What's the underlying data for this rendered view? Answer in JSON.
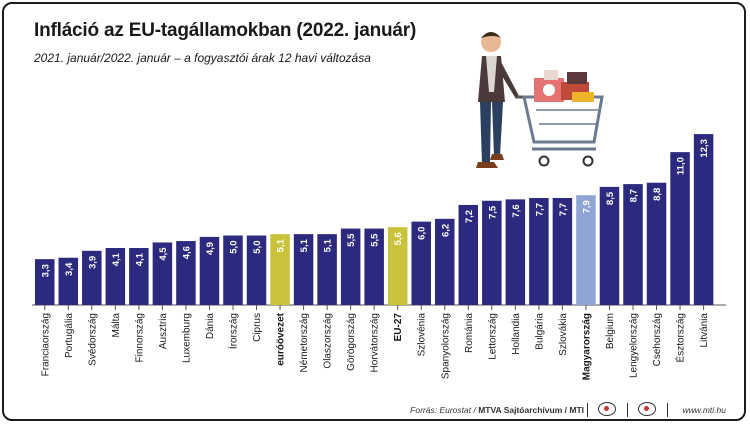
{
  "title": "Infláció az EU-tagállamokban (2022. január)",
  "subtitle": "2021. január/2022. január – a fogyasztói árak 12 havi változása",
  "footer": {
    "source_prefix": "Forrás: Eurostat / ",
    "source_bold": "MTVA Sajtóarchívum / MTI",
    "site": "www.mti.hu"
  },
  "colors": {
    "bar_default": "#2b2a7e",
    "bar_eu": "#c8c33a",
    "bar_hungary": "#8ea5d6",
    "axis": "#555555"
  },
  "icons": [
    "shopper-with-cart-illustration",
    "mtva-logo-icon",
    "mti-logo-icon"
  ],
  "chart_data": {
    "type": "bar",
    "categories": [
      "Franciaország",
      "Portugália",
      "Svédország",
      "Málta",
      "Finnország",
      "Ausztria",
      "Luxemburg",
      "Dánia",
      "Írország",
      "Ciprus",
      "euróövezet",
      "Németország",
      "Olaszország",
      "Görögország",
      "Horvátország",
      "EU-27",
      "Szlovénia",
      "Spanyolország",
      "Románia",
      "Lettország",
      "Hollandia",
      "Bulgária",
      "Szlovákia",
      "Magyarország",
      "Belgium",
      "Lengyelország",
      "Csehország",
      "Észtország",
      "Litvánia"
    ],
    "values": [
      3.3,
      3.4,
      3.9,
      4.1,
      4.1,
      4.5,
      4.6,
      4.9,
      5.0,
      5.0,
      5.1,
      5.1,
      5.1,
      5.5,
      5.5,
      5.6,
      6.0,
      6.2,
      7.2,
      7.5,
      7.6,
      7.7,
      7.7,
      7.9,
      8.5,
      8.7,
      8.8,
      11.0,
      12.3
    ],
    "value_labels": [
      "3,3",
      "3,4",
      "3,9",
      "4,1",
      "4,1",
      "4,5",
      "4,6",
      "4,9",
      "5,0",
      "5,0",
      "5,1",
      "5,1",
      "5,1",
      "5,5",
      "5,5",
      "5,6",
      "6,0",
      "6,2",
      "7,2",
      "7,5",
      "7,6",
      "7,7",
      "7,7",
      "7,9",
      "8,5",
      "8,7",
      "8,8",
      "11,0",
      "12,3"
    ],
    "highlight": {
      "euróövezet": "eu",
      "EU-27": "eu",
      "Magyarország": "hungary"
    },
    "bold_labels": [
      "euróövezet",
      "EU-27",
      "Magyarország"
    ],
    "ylim": [
      0,
      13.6
    ],
    "grid": false,
    "legend": "none"
  }
}
